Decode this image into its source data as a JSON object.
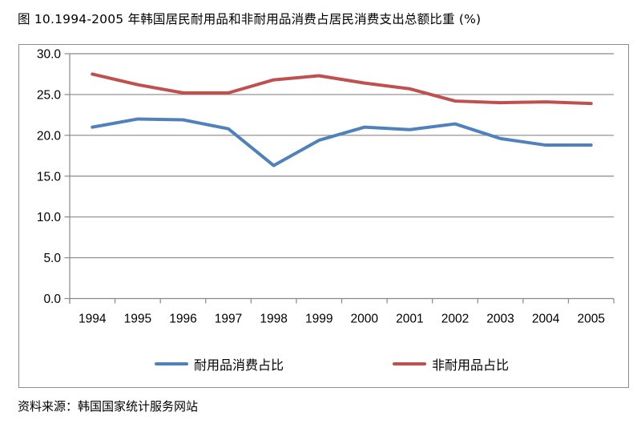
{
  "page": {
    "title": "图 10.1994-2005 年韩国居民耐用品和非耐用品消费占居民消费支出总额比重 (%)",
    "source": "资料来源：韩国国家统计服务网站"
  },
  "chart_data": {
    "type": "line",
    "title": "图 10.1994-2005 年韩国居民耐用品和非耐用品消费占居民消费支出总额比重 (%)",
    "categories": [
      "1994",
      "1995",
      "1996",
      "1997",
      "1998",
      "1999",
      "2000",
      "2001",
      "2002",
      "2003",
      "2004",
      "2005"
    ],
    "series": [
      {
        "name": "耐用品消费占比",
        "color": "#4F81BD",
        "values": [
          21.0,
          22.0,
          21.9,
          20.8,
          16.3,
          19.4,
          21.0,
          20.7,
          21.4,
          19.6,
          18.8,
          18.8
        ]
      },
      {
        "name": "非耐用品占比",
        "color": "#C0504D",
        "values": [
          27.5,
          26.2,
          25.2,
          25.2,
          26.8,
          27.3,
          26.4,
          25.7,
          24.2,
          24.0,
          24.1,
          23.9
        ]
      }
    ],
    "xlabel": "",
    "ylabel": "",
    "ylim": [
      0,
      30
    ],
    "ytick_step": 5,
    "ytick_decimals": 1,
    "grid": "horizontal",
    "gridline_color": "#898989",
    "axis_color": "#898989",
    "legend_position": "bottom"
  }
}
